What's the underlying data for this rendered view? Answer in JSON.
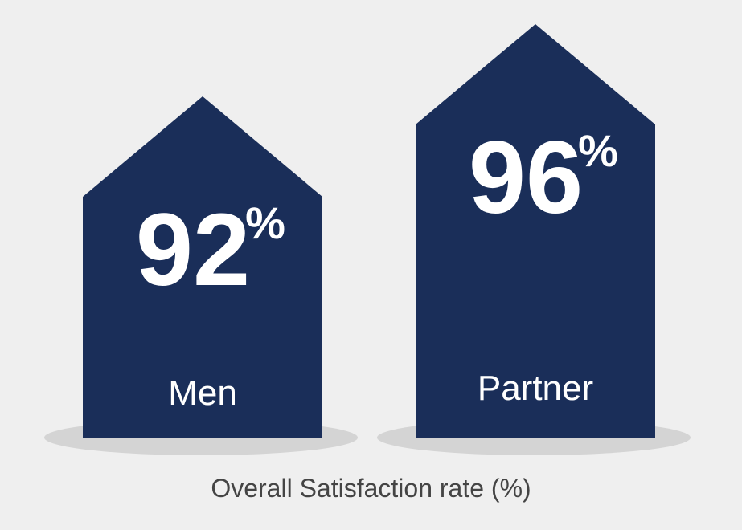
{
  "chart_data": {
    "type": "bar",
    "categories": [
      "Men",
      "Partner"
    ],
    "values": [
      92,
      96
    ],
    "value_suffix": "%",
    "xlabel": "Overall Satisfaction rate (%)",
    "ylabel": "",
    "ylim": [
      0,
      100
    ]
  },
  "colors": {
    "background": "#efefef",
    "bar": "#1a2e59",
    "shadow": "#d4d4d4",
    "label": "#ffffff",
    "caption": "#444444"
  }
}
